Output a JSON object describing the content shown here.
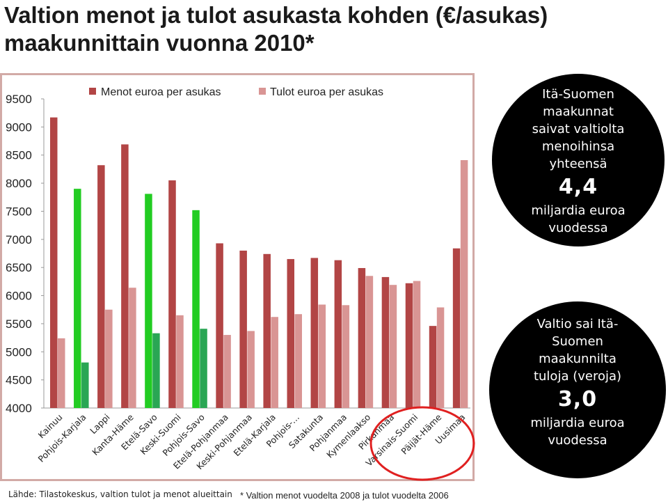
{
  "title_line1": "Valtion menot ja tulot asukasta kohden (€/asukas)",
  "title_line2": "maakunnittain vuonna 2010*",
  "chart_data": {
    "type": "bar",
    "categories": [
      "Kainuu",
      "Pohjois-Karjala",
      "Lappi",
      "Kanta-Häme",
      "Etelä-Savo",
      "Keski-Suomi",
      "Pohjois-Savo",
      "Etelä-Pohjanmaa",
      "Keski-Pohjanmaa",
      "Etelä-Karjala",
      "Pohjois-…",
      "Satakunta",
      "Pohjanmaa",
      "Kymenlaakso",
      "Pirkanmaa",
      "Varsinais-Suomi",
      "Päijät-Häme",
      "Uusimaa"
    ],
    "series": [
      {
        "name": "Menot euroa per asukas",
        "values": [
          9170,
          7900,
          8320,
          8690,
          7810,
          8050,
          7520,
          6930,
          6800,
          6740,
          6650,
          6670,
          6630,
          6490,
          6330,
          6220,
          5460,
          6840
        ]
      },
      {
        "name": "Tulot euroa per asukas",
        "values": [
          5240,
          4810,
          5750,
          6140,
          5330,
          5650,
          5410,
          5300,
          5370,
          5620,
          5670,
          5840,
          5830,
          6350,
          6190,
          6260,
          5790,
          8410
        ]
      }
    ],
    "highlight_menot_categories": [
      "Pohjois-Karjala",
      "Etelä-Savo",
      "Pohjois-Savo"
    ],
    "highlight_menot_color": "#22cc22",
    "highlight_tulot_color": "#2aa654",
    "menot_color": "#b24545",
    "tulot_color": "#d99594",
    "ylim": [
      4000,
      9500
    ],
    "yticks": [
      4000,
      4500,
      5000,
      5500,
      6000,
      6500,
      7000,
      7500,
      8000,
      8500,
      9000,
      9500
    ],
    "legend_position": "top",
    "circled_categories": [
      "Pirkanmaa",
      "Varsinais-Suomi",
      "Päijät-Häme",
      "Uusimaa"
    ],
    "circle_color": "#e02020"
  },
  "callout1": {
    "lines": [
      "Itä-Suomen",
      "maakunnat",
      "saivat valtiolta",
      "menoihinsa",
      "yhteensä"
    ],
    "value": "4,4",
    "unit_lines": [
      "miljardia euroa",
      "vuodessa"
    ]
  },
  "callout2": {
    "lines": [
      "Valtio sai Itä-",
      "Suomen",
      "maakunnilta",
      "tuloja (veroja)"
    ],
    "value": "3,0",
    "unit_lines": [
      "miljardia euroa",
      "vuodessa"
    ]
  },
  "source": "Lähde: Tilastokeskus, valtion tulot ja menot alueittain",
  "note": "* Valtion menot vuodelta 2008 ja tulot vuodelta 2006"
}
